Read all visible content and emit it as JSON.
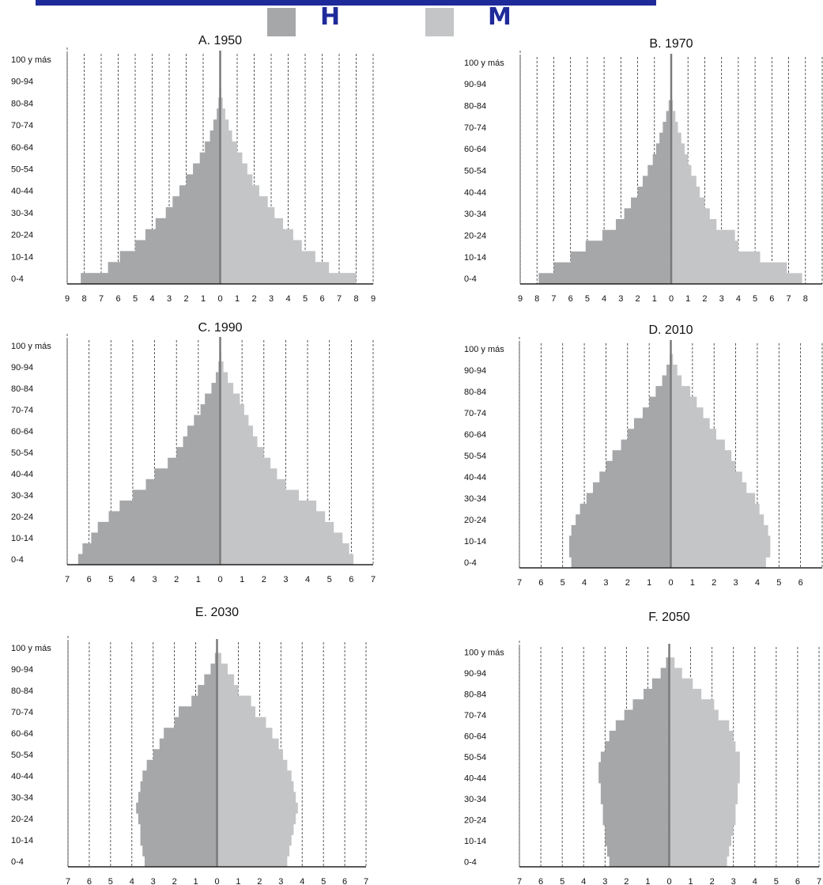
{
  "legend": {
    "male_label": "H",
    "female_label": "M",
    "male_color": "#a6a7a9",
    "female_color": "#c4c5c7",
    "header_bar_color": "#1f2a9a"
  },
  "chart_data": [
    {
      "type": "bar",
      "title": "A. 1950",
      "age_labels": [
        "0-4",
        "10-14",
        "20-24",
        "30-34",
        "40-44",
        "50-54",
        "60-64",
        "70-74",
        "80-84",
        "90-94",
        "100 y más"
      ],
      "xticks": [
        "9",
        "8",
        "7",
        "6",
        "5",
        "4",
        "3",
        "2",
        "1",
        "0",
        "1",
        "2",
        "3",
        "4",
        "5",
        "6",
        "7",
        "8",
        "9"
      ],
      "xlim": [
        -9,
        9
      ],
      "series": [
        {
          "name": "H",
          "values": [
            -8.2,
            -6.6,
            -5.9,
            -5.0,
            -4.4,
            -3.8,
            -3.2,
            -2.8,
            -2.4,
            -2.0,
            -1.6,
            -1.2,
            -0.9,
            -0.6,
            -0.4,
            -0.2,
            -0.1,
            -0.05,
            -0.02,
            -0.01,
            0
          ]
        },
        {
          "name": "M",
          "values": [
            8.0,
            6.4,
            5.6,
            4.8,
            4.3,
            3.7,
            3.2,
            2.8,
            2.3,
            1.9,
            1.6,
            1.3,
            1.0,
            0.7,
            0.5,
            0.3,
            0.15,
            0.06,
            0.02,
            0.01,
            0
          ]
        }
      ]
    },
    {
      "type": "bar",
      "title": "B. 1970",
      "age_labels": [
        "0-4",
        "10-14",
        "20-24",
        "30-34",
        "40-44",
        "50-54",
        "60-64",
        "70-74",
        "80-84",
        "90-94",
        "100 y más"
      ],
      "xticks": [
        "9",
        "8",
        "7",
        "6",
        "5",
        "4",
        "3",
        "2",
        "1",
        "0",
        "1",
        "2",
        "3",
        "4",
        "5",
        "6",
        "7",
        "8",
        "9"
      ],
      "xlim": [
        -9,
        9
      ],
      "series": [
        {
          "name": "H",
          "values": [
            -7.9,
            -7.0,
            -6.0,
            -5.1,
            -4.1,
            -3.3,
            -2.8,
            -2.4,
            -2.0,
            -1.7,
            -1.4,
            -1.1,
            -0.9,
            -0.7,
            -0.5,
            -0.3,
            -0.15,
            -0.05,
            -0.02,
            -0.01,
            0
          ]
        },
        {
          "name": "M",
          "values": [
            7.8,
            6.9,
            5.3,
            4.0,
            3.8,
            2.7,
            2.3,
            2.0,
            1.7,
            1.5,
            1.2,
            1.0,
            0.8,
            0.6,
            0.4,
            0.25,
            0.1,
            0.04,
            0.02,
            0.01,
            0
          ]
        }
      ]
    },
    {
      "type": "bar",
      "title": "C. 1990",
      "age_labels": [
        "0-4",
        "10-14",
        "20-24",
        "30-34",
        "40-44",
        "50-54",
        "60-64",
        "70-74",
        "80-84",
        "90-94",
        "100 y más"
      ],
      "xticks": [
        "7",
        "6",
        "5",
        "4",
        "3",
        "2",
        "1",
        "0",
        "1",
        "2",
        "3",
        "4",
        "5",
        "6",
        "7"
      ],
      "xlim": [
        -7,
        7
      ],
      "series": [
        {
          "name": "H",
          "values": [
            -6.5,
            -6.3,
            -5.9,
            -5.6,
            -5.1,
            -4.6,
            -4.0,
            -3.4,
            -3.0,
            -2.4,
            -2.0,
            -1.7,
            -1.5,
            -1.2,
            -0.9,
            -0.7,
            -0.4,
            -0.2,
            -0.08,
            -0.02,
            0
          ]
        },
        {
          "name": "M",
          "values": [
            6.1,
            5.9,
            5.6,
            5.2,
            4.8,
            4.4,
            3.6,
            3.0,
            2.6,
            2.3,
            2.0,
            1.7,
            1.5,
            1.3,
            1.1,
            0.9,
            0.6,
            0.35,
            0.15,
            0.05,
            0
          ]
        }
      ]
    },
    {
      "type": "bar",
      "title": "D. 2010",
      "age_labels": [
        "0-4",
        "10-14",
        "20-24",
        "30-34",
        "40-44",
        "50-54",
        "60-64",
        "70-74",
        "80-84",
        "90-94",
        "100 y más"
      ],
      "xticks": [
        "7",
        "6",
        "5",
        "4",
        "3",
        "2",
        "1",
        "0",
        "1",
        "2",
        "3",
        "4",
        "5",
        "6",
        "7"
      ],
      "xlim": [
        -7,
        7
      ],
      "series": [
        {
          "name": "H",
          "values": [
            -4.6,
            -4.7,
            -4.7,
            -4.6,
            -4.4,
            -4.2,
            -3.9,
            -3.6,
            -3.3,
            -3.0,
            -2.7,
            -2.3,
            -2.0,
            -1.7,
            -1.3,
            -1.0,
            -0.7,
            -0.4,
            -0.2,
            -0.05,
            0
          ]
        },
        {
          "name": "M",
          "values": [
            4.4,
            4.6,
            4.6,
            4.5,
            4.3,
            4.1,
            3.9,
            3.5,
            3.3,
            3.0,
            2.8,
            2.5,
            2.1,
            1.8,
            1.5,
            1.2,
            0.9,
            0.5,
            0.3,
            0.1,
            0
          ]
        }
      ]
    },
    {
      "type": "bar",
      "title": "E. 2030",
      "age_labels": [
        "0-4",
        "10-14",
        "20-24",
        "30-34",
        "40-44",
        "50-54",
        "60-64",
        "70-74",
        "80-84",
        "90-94",
        "100 y más"
      ],
      "xticks": [
        "7",
        "6",
        "5",
        "4",
        "3",
        "2",
        "1",
        "0",
        "1",
        "2",
        "3",
        "4",
        "5",
        "6",
        "7"
      ],
      "xlim": [
        -7,
        7
      ],
      "series": [
        {
          "name": "H",
          "values": [
            -3.4,
            -3.5,
            -3.6,
            -3.6,
            -3.7,
            -3.8,
            -3.7,
            -3.6,
            -3.5,
            -3.3,
            -3.0,
            -2.7,
            -2.5,
            -2.0,
            -1.8,
            -1.2,
            -0.9,
            -0.6,
            -0.3,
            -0.1,
            0
          ]
        },
        {
          "name": "M",
          "values": [
            3.3,
            3.4,
            3.5,
            3.6,
            3.7,
            3.8,
            3.7,
            3.6,
            3.5,
            3.3,
            3.1,
            2.9,
            2.6,
            2.3,
            1.8,
            1.6,
            1.0,
            0.8,
            0.5,
            0.2,
            0
          ]
        }
      ]
    },
    {
      "type": "bar",
      "title": "F. 2050",
      "age_labels": [
        "0-4",
        "10-14",
        "20-24",
        "30-34",
        "40-44",
        "50-54",
        "60-64",
        "70-74",
        "80-84",
        "90-94",
        "100 y más"
      ],
      "xticks": [
        "7",
        "6",
        "5",
        "4",
        "3",
        "2",
        "1",
        "0",
        "1",
        "2",
        "3",
        "4",
        "5",
        "6",
        "7"
      ],
      "xlim": [
        -7,
        7
      ],
      "series": [
        {
          "name": "H",
          "values": [
            -2.8,
            -2.9,
            -3.0,
            -3.0,
            -3.1,
            -3.1,
            -3.2,
            -3.2,
            -3.3,
            -3.3,
            -3.2,
            -3.0,
            -2.8,
            -2.5,
            -2.1,
            -1.7,
            -1.2,
            -0.8,
            -0.4,
            -0.15,
            0
          ]
        },
        {
          "name": "M",
          "values": [
            2.7,
            2.8,
            2.9,
            3.0,
            3.1,
            3.1,
            3.2,
            3.2,
            3.3,
            3.3,
            3.3,
            3.1,
            3.0,
            2.8,
            2.3,
            2.1,
            1.5,
            1.1,
            0.6,
            0.25,
            0
          ]
        }
      ]
    }
  ]
}
